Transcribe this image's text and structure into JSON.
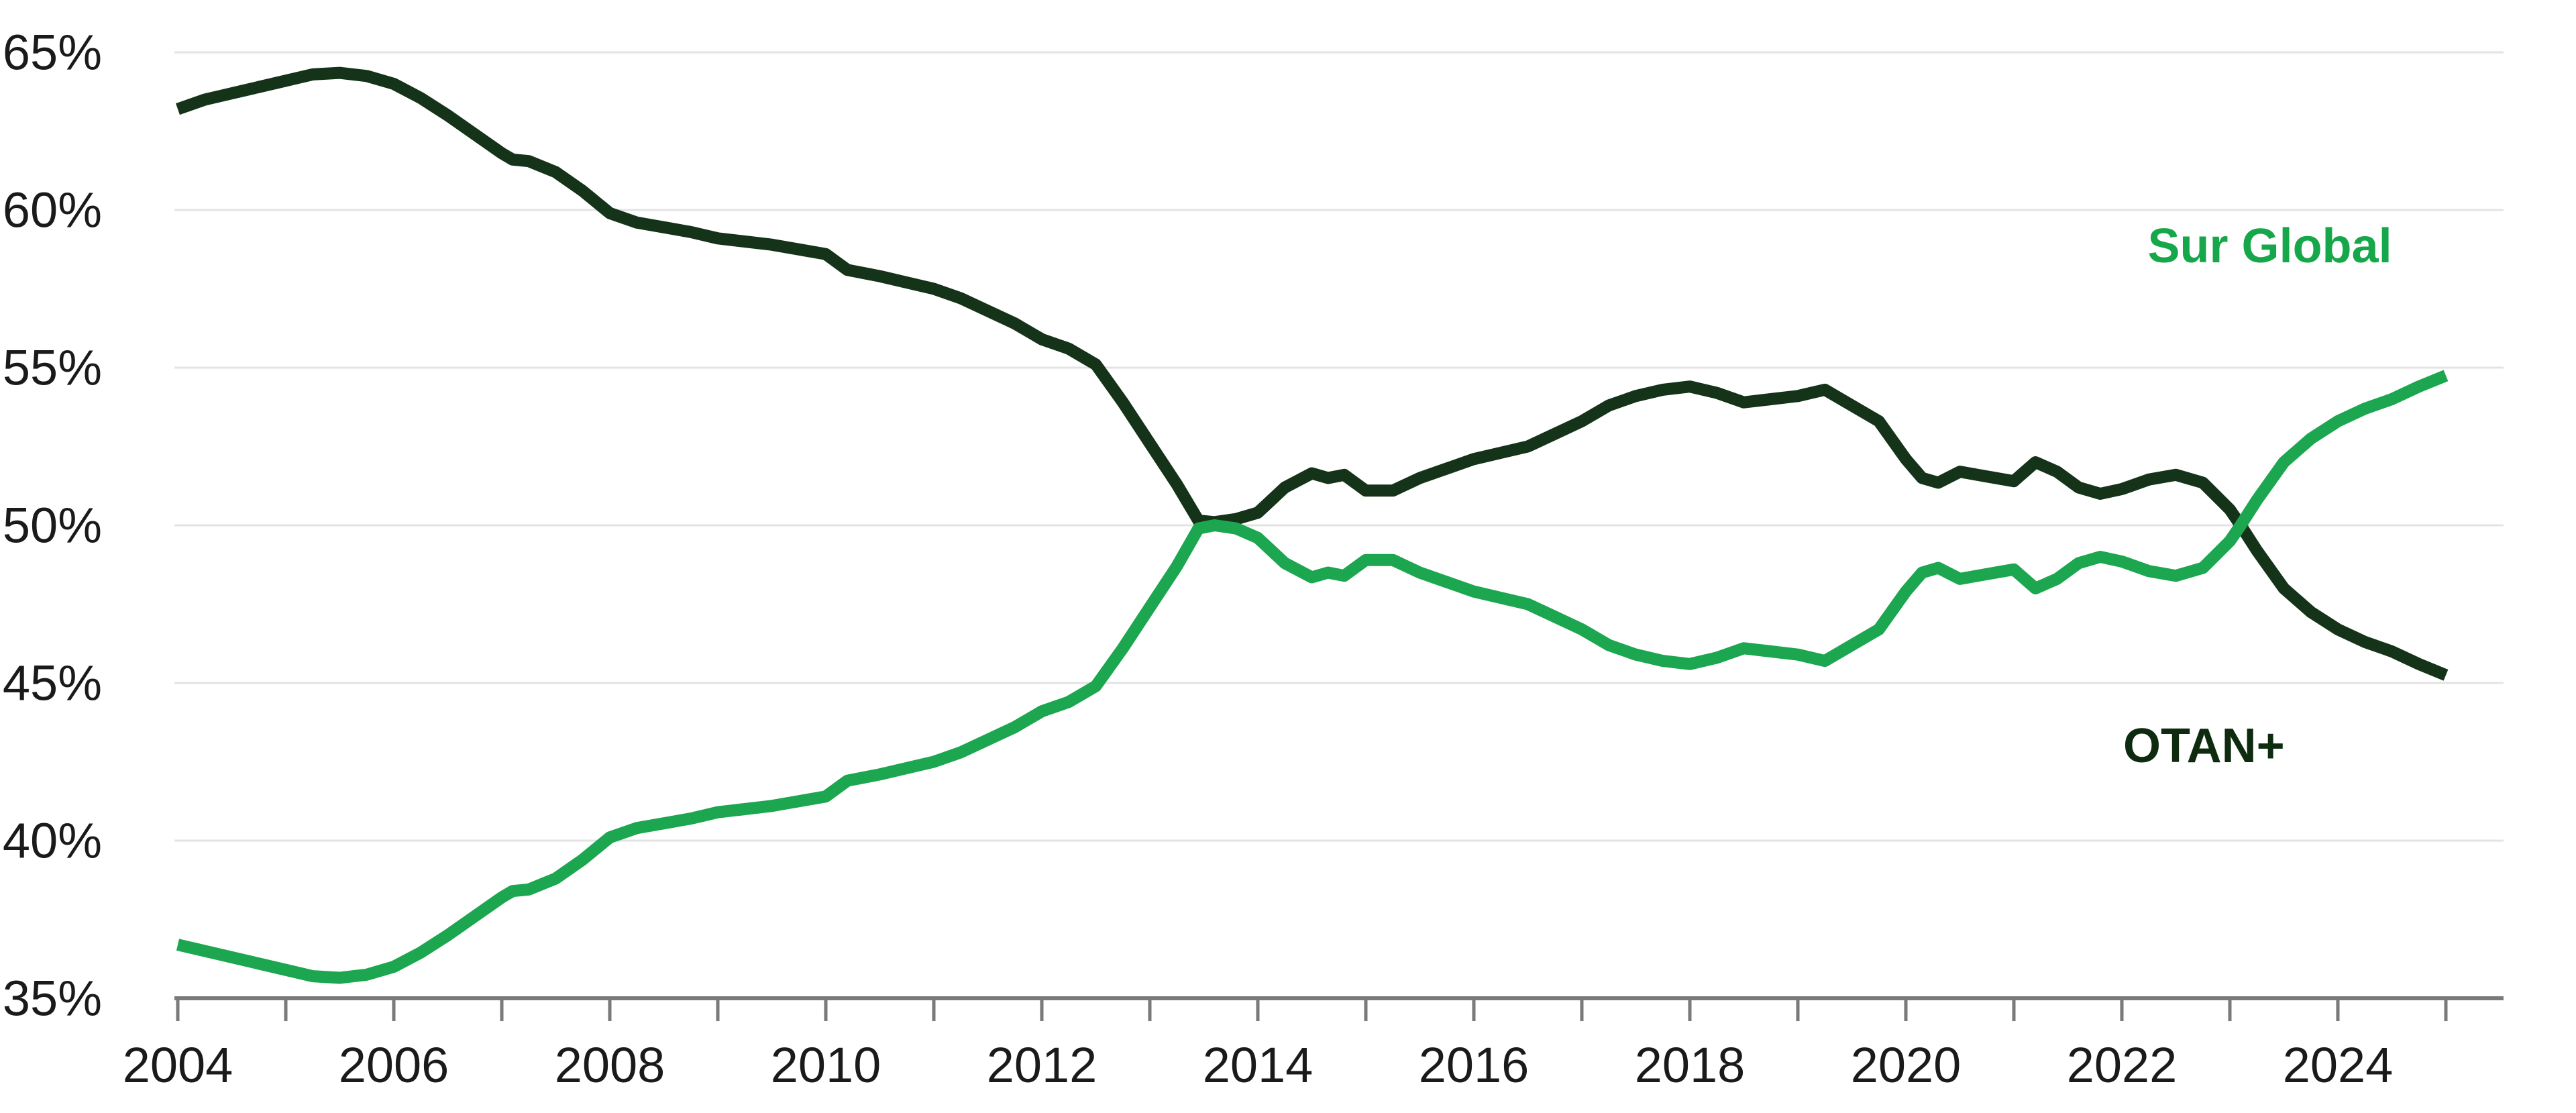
{
  "chart_data": {
    "type": "line",
    "title": "",
    "xlabel": "",
    "ylabel": "",
    "grid": true,
    "legend_position": "inline-annotations",
    "ylim": [
      35,
      65.6
    ],
    "xlim": [
      2003.97,
      2025.55
    ],
    "y_ticks": [
      65,
      60,
      55,
      50,
      45,
      40,
      35
    ],
    "y_tick_suffix": "%",
    "x_tick_years": [
      2004,
      2005,
      2006,
      2007,
      2008,
      2009,
      2010,
      2011,
      2012,
      2013,
      2014,
      2015,
      2016,
      2017,
      2018,
      2019,
      2020,
      2021,
      2022,
      2023,
      2024,
      2025
    ],
    "x_tick_labels": [
      "2004",
      "2006",
      "2008",
      "2010",
      "2012",
      "2014",
      "2016",
      "2018",
      "2020",
      "2022",
      "2024"
    ],
    "x_label_years": [
      2004,
      2006,
      2008,
      2010,
      2012,
      2014,
      2016,
      2018,
      2020,
      2022,
      2024
    ],
    "x": [
      2004.0,
      2004.25,
      2004.5,
      2004.75,
      2005.0,
      2005.25,
      2005.5,
      2005.75,
      2006.0,
      2006.25,
      2006.5,
      2006.75,
      2007.0,
      2007.1,
      2007.25,
      2007.5,
      2007.75,
      2008.0,
      2008.25,
      2008.5,
      2008.75,
      2009.0,
      2009.25,
      2009.5,
      2009.75,
      2010.0,
      2010.2,
      2010.35,
      2010.5,
      2010.75,
      2011.0,
      2011.25,
      2011.5,
      2011.75,
      2012.0,
      2012.25,
      2012.5,
      2012.75,
      2013.0,
      2013.25,
      2013.45,
      2013.6,
      2013.8,
      2014.0,
      2014.25,
      2014.5,
      2014.65,
      2014.8,
      2015.0,
      2015.25,
      2015.5,
      2015.75,
      2016.0,
      2016.25,
      2016.5,
      2016.75,
      2017.0,
      2017.25,
      2017.5,
      2017.75,
      2018.0,
      2018.25,
      2018.5,
      2018.75,
      2019.0,
      2019.25,
      2019.5,
      2019.75,
      2020.0,
      2020.15,
      2020.3,
      2020.5,
      2020.75,
      2021.0,
      2021.2,
      2021.4,
      2021.6,
      2021.8,
      2022.0,
      2022.25,
      2022.5,
      2022.75,
      2023.0,
      2023.1,
      2023.25,
      2023.5,
      2023.75,
      2024.0,
      2024.25,
      2024.5,
      2024.75,
      2025.0
    ],
    "series": [
      {
        "name": "OTAN+",
        "color": "#0E2B10",
        "line_color": "#143318",
        "annotation": {
          "text": "OTAN+",
          "year": 2022.76,
          "value": 43.0
        },
        "values": [
          63.2,
          63.5,
          63.7,
          63.9,
          64.1,
          64.3,
          64.35,
          64.25,
          64.0,
          63.55,
          63.0,
          62.4,
          61.8,
          61.6,
          61.55,
          61.2,
          60.6,
          59.9,
          59.6,
          59.45,
          59.3,
          59.1,
          59.0,
          58.9,
          58.75,
          58.6,
          58.1,
          58.0,
          57.9,
          57.7,
          57.5,
          57.2,
          56.8,
          56.4,
          55.9,
          55.6,
          55.1,
          53.9,
          52.6,
          51.3,
          50.15,
          50.1,
          50.2,
          50.4,
          51.2,
          51.65,
          51.5,
          51.6,
          51.1,
          51.1,
          51.5,
          51.8,
          52.1,
          52.3,
          52.5,
          52.9,
          53.3,
          53.8,
          54.1,
          54.3,
          54.4,
          54.2,
          53.9,
          54.0,
          54.1,
          54.3,
          53.8,
          53.3,
          52.1,
          51.5,
          51.35,
          51.7,
          51.55,
          51.4,
          52.0,
          51.7,
          51.2,
          51.0,
          51.15,
          51.45,
          51.6,
          51.35,
          50.5,
          50.0,
          49.2,
          48.0,
          47.25,
          46.7,
          46.3,
          46.0,
          45.6,
          45.25
        ]
      },
      {
        "name": "Sur Global",
        "color": "#17A74B",
        "line_color": "#1CA64F",
        "annotation": {
          "text": "Sur Global",
          "year": 2023.37,
          "value": 58.85
        },
        "values": [
          36.7,
          36.5,
          36.3,
          36.1,
          35.9,
          35.7,
          35.65,
          35.75,
          36.0,
          36.45,
          37.0,
          37.6,
          38.2,
          38.4,
          38.45,
          38.8,
          39.4,
          40.1,
          40.4,
          40.55,
          40.7,
          40.9,
          41.0,
          41.1,
          41.25,
          41.4,
          41.9,
          42.0,
          42.1,
          42.3,
          42.5,
          42.8,
          43.2,
          43.6,
          44.1,
          44.4,
          44.9,
          46.1,
          47.4,
          48.7,
          49.9,
          50.0,
          49.9,
          49.6,
          48.8,
          48.35,
          48.5,
          48.4,
          48.9,
          48.9,
          48.5,
          48.2,
          47.9,
          47.7,
          47.5,
          47.1,
          46.7,
          46.2,
          45.9,
          45.7,
          45.6,
          45.8,
          46.1,
          46.0,
          45.9,
          45.7,
          46.2,
          46.7,
          47.9,
          48.5,
          48.65,
          48.3,
          48.45,
          48.6,
          48.0,
          48.3,
          48.8,
          49.0,
          48.85,
          48.55,
          48.4,
          48.65,
          49.5,
          50.0,
          50.8,
          52.0,
          52.75,
          53.3,
          53.7,
          54.0,
          54.4,
          54.75
        ]
      }
    ],
    "colors": {
      "background": "#FFFFFF",
      "grid": "#E3E3E3",
      "axis": "#7A7A7A",
      "tick_text": "#1A1A1A"
    }
  }
}
